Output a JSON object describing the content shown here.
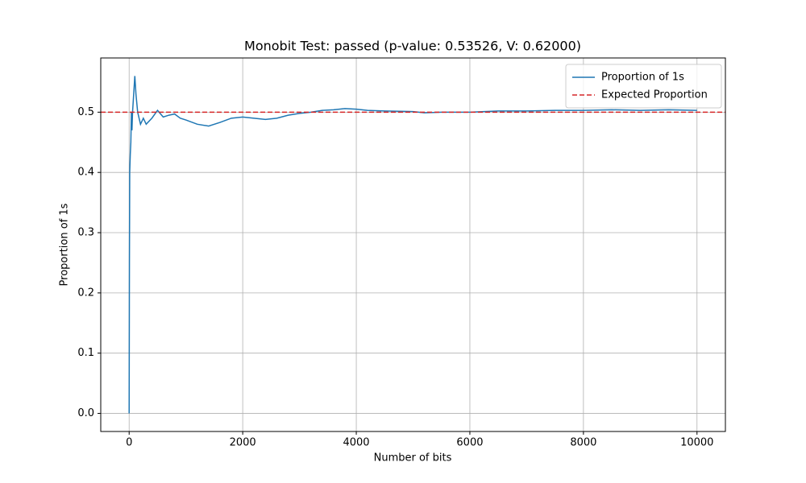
{
  "chart_data": {
    "type": "line",
    "title": "Monobit Test: passed (p-value: 0.53526, V: 0.62000)",
    "x_label": "Number of bits",
    "y_label": "Proportion of 1s",
    "x": [
      0,
      5,
      10,
      20,
      30,
      40,
      50,
      60,
      80,
      100,
      120,
      150,
      200,
      250,
      300,
      400,
      500,
      600,
      700,
      800,
      900,
      1000,
      1200,
      1400,
      1600,
      1800,
      2000,
      2200,
      2400,
      2600,
      2800,
      3000,
      3200,
      3400,
      3600,
      3800,
      4000,
      4200,
      4500,
      5000,
      5200,
      5500,
      6000,
      6500,
      7000,
      7500,
      8000,
      8500,
      9000,
      9500,
      10000
    ],
    "series": [
      {
        "name": "Proportion of 1s",
        "color": "#1f77b4",
        "values": [
          0.0,
          0.25,
          0.4,
          0.43,
          0.45,
          0.5,
          0.47,
          0.5,
          0.53,
          0.56,
          0.53,
          0.5,
          0.48,
          0.49,
          0.48,
          0.49,
          0.503,
          0.492,
          0.495,
          0.497,
          0.49,
          0.487,
          0.48,
          0.477,
          0.483,
          0.49,
          0.492,
          0.49,
          0.488,
          0.49,
          0.495,
          0.498,
          0.5,
          0.503,
          0.504,
          0.506,
          0.505,
          0.503,
          0.502,
          0.501,
          0.499,
          0.5,
          0.5,
          0.502,
          0.502,
          0.503,
          0.503,
          0.504,
          0.503,
          0.504,
          0.503
        ]
      }
    ],
    "reference_lines": [
      {
        "name": "Expected Proportion",
        "value": 0.5,
        "color": "#d62728"
      }
    ],
    "xlim": [
      -500,
      10500
    ],
    "ylim": [
      -0.03,
      0.59
    ],
    "xticks": [
      0,
      2000,
      4000,
      6000,
      8000,
      10000
    ],
    "yticks": [
      {
        "value": 0,
        "label": "0.0"
      },
      0.1,
      0.2,
      0.3,
      0.4,
      0.5
    ],
    "grid": true,
    "legend": "upper-right"
  }
}
